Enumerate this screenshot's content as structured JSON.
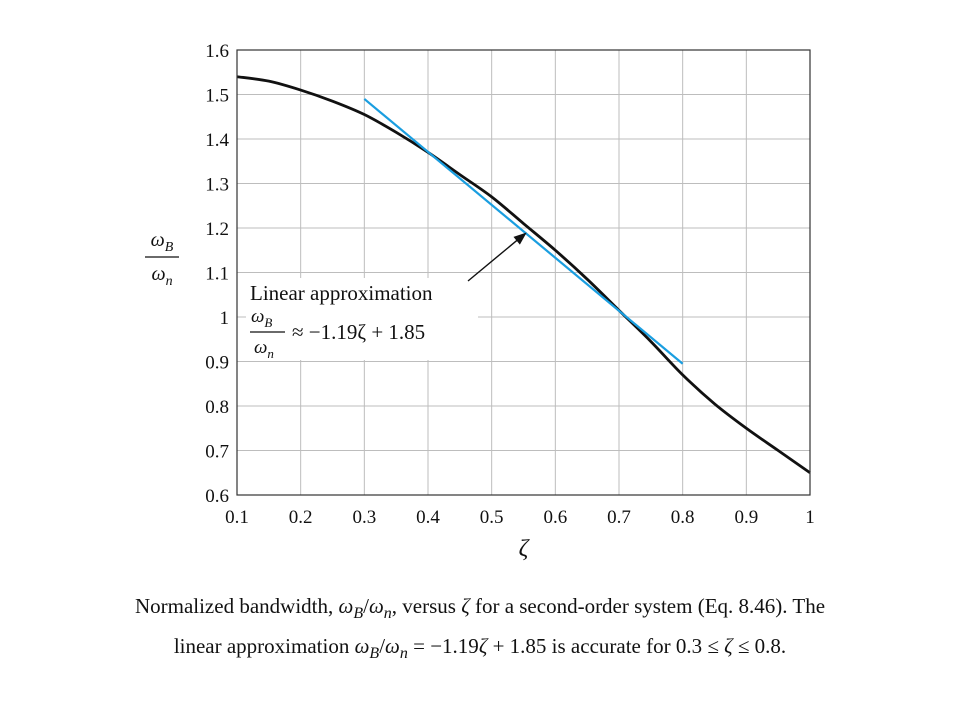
{
  "chart_data": {
    "type": "line",
    "x": [
      0.1,
      0.15,
      0.2,
      0.25,
      0.3,
      0.35,
      0.4,
      0.45,
      0.5,
      0.55,
      0.6,
      0.65,
      0.7,
      0.75,
      0.8,
      0.85,
      0.9,
      0.95,
      1.0
    ],
    "series": [
      {
        "values": [
          1.54,
          1.53,
          1.51,
          1.485,
          1.455,
          1.415,
          1.37,
          1.32,
          1.27,
          1.21,
          1.15,
          1.085,
          1.015,
          0.945,
          0.87,
          0.805,
          0.75,
          0.7,
          0.65
        ],
        "color": "#111111"
      },
      {
        "x": [
          0.3,
          0.8
        ],
        "values": [
          1.49,
          0.895
        ],
        "color": "#1a9ee0"
      }
    ],
    "xlim": [
      0.1,
      1.0
    ],
    "ylim": [
      0.6,
      1.6
    ],
    "xticks": [
      "0.1",
      "0.2",
      "0.3",
      "0.4",
      "0.5",
      "0.6",
      "0.7",
      "0.8",
      "0.9",
      "1"
    ],
    "yticks": [
      "0.6",
      "0.7",
      "0.8",
      "0.9",
      "1",
      "1.1",
      "1.2",
      "1.3",
      "1.4",
      "1.5",
      "1.6"
    ],
    "xlabel": "ζ",
    "ylabel_num": "ω",
    "ylabel_num_sub": "B",
    "ylabel_den": "ω",
    "ylabel_den_sub": "n",
    "grid": true,
    "annotation": {
      "label": "Linear approximation",
      "num": "ω",
      "num_sub": "B",
      "den": "ω",
      "den_sub": "n",
      "equation": "≈ −1.19ζ + 1.85",
      "arrow_target": [
        0.555,
        1.19
      ]
    }
  },
  "caption": {
    "line1_a": "Normalized bandwidth, ",
    "line1_omega1": "ω",
    "line1_sub1": "B",
    "line1_slash": "/",
    "line1_omega2": "ω",
    "line1_sub2": "n",
    "line1_b": ", versus ",
    "line1_zeta": "ζ",
    "line1_c": " for a second-order system (Eq. 8.46). The",
    "line2_a": "linear approximation ",
    "line2_omega1": "ω",
    "line2_sub1": "B",
    "line2_slash": "/",
    "line2_omega2": "ω",
    "line2_sub2": "n",
    "line2_eq": " = −1.19",
    "line2_zeta": "ζ",
    "line2_b": " + 1.85 is accurate for 0.3 ≤ ",
    "line2_zeta2": "ζ",
    "line2_c": " ≤ 0.8."
  }
}
